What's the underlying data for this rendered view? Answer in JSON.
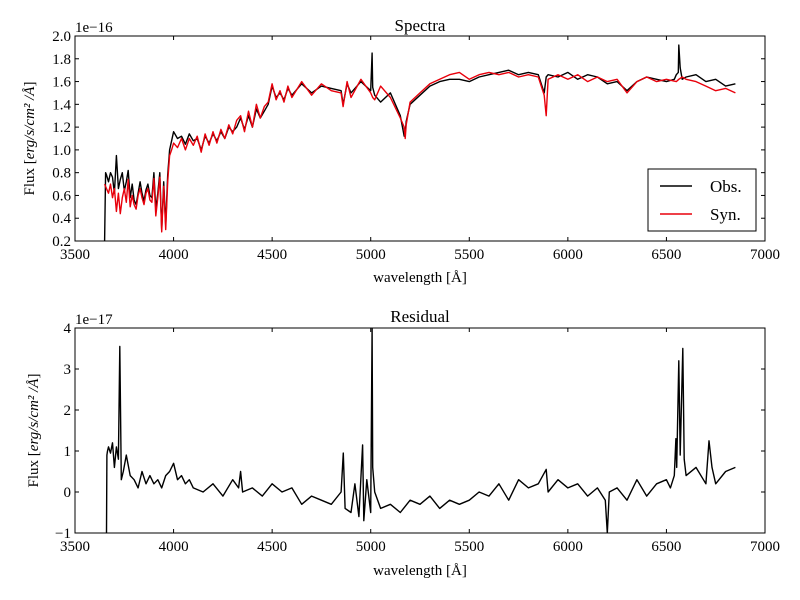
{
  "chart_data": [
    {
      "type": "line",
      "title": "Spectra",
      "xlabel": "wavelength [Å]",
      "ylabel_text": "Flux [",
      "ylabel_unit": "erg/s/cm² /Å",
      "ylabel_close": "]",
      "offset_text": "1e−16",
      "xlim": [
        3500,
        7000
      ],
      "ylim": [
        0.2,
        2.0
      ],
      "xticks": [
        3500,
        4000,
        4500,
        5000,
        5500,
        6000,
        6500,
        7000
      ],
      "yticks": [
        0.2,
        0.4,
        0.6,
        0.8,
        1.0,
        1.2,
        1.4,
        1.6,
        1.8,
        2.0
      ],
      "ytick_labels": [
        "0.2",
        "0.4",
        "0.6",
        "0.8",
        "1.0",
        "1.2",
        "1.4",
        "1.6",
        "1.8",
        "2.0"
      ],
      "legend": {
        "position": "lower-right",
        "entries": [
          "Obs.",
          "Syn."
        ]
      },
      "series": [
        {
          "name": "Obs.",
          "color": "#000000",
          "x": [
            3650,
            3655,
            3660,
            3670,
            3680,
            3690,
            3700,
            3710,
            3720,
            3730,
            3740,
            3750,
            3760,
            3770,
            3780,
            3790,
            3800,
            3810,
            3820,
            3830,
            3840,
            3850,
            3860,
            3870,
            3880,
            3890,
            3900,
            3910,
            3920,
            3930,
            3940,
            3950,
            3960,
            3970,
            3980,
            3990,
            4000,
            4020,
            4040,
            4060,
            4080,
            4100,
            4120,
            4140,
            4160,
            4180,
            4200,
            4220,
            4240,
            4260,
            4280,
            4300,
            4320,
            4340,
            4360,
            4380,
            4400,
            4420,
            4440,
            4460,
            4480,
            4500,
            4520,
            4540,
            4560,
            4580,
            4600,
            4650,
            4700,
            4750,
            4800,
            4850,
            4860,
            4880,
            4900,
            4950,
            5000,
            5007,
            5010,
            5020,
            5050,
            5100,
            5150,
            5170,
            5175,
            5180,
            5200,
            5250,
            5300,
            5350,
            5400,
            5450,
            5500,
            5550,
            5600,
            5650,
            5700,
            5750,
            5800,
            5850,
            5880,
            5890,
            5900,
            5950,
            6000,
            6050,
            6100,
            6150,
            6200,
            6250,
            6300,
            6350,
            6400,
            6450,
            6500,
            6540,
            6550,
            6560,
            6563,
            6570,
            6580,
            6600,
            6650,
            6700,
            6750,
            6800,
            6850
          ],
          "y": [
            0.2,
            0.8,
            0.78,
            0.72,
            0.8,
            0.76,
            0.62,
            0.95,
            0.66,
            0.74,
            0.8,
            0.64,
            0.72,
            0.82,
            0.58,
            0.7,
            0.56,
            0.52,
            0.62,
            0.72,
            0.62,
            0.55,
            0.65,
            0.7,
            0.6,
            0.58,
            0.8,
            0.48,
            0.62,
            0.8,
            0.3,
            0.72,
            0.34,
            0.78,
            1.0,
            1.08,
            1.16,
            1.1,
            1.12,
            1.05,
            1.14,
            1.08,
            1.1,
            1.0,
            1.12,
            1.06,
            1.14,
            1.08,
            1.16,
            1.1,
            1.2,
            1.16,
            1.2,
            1.28,
            1.18,
            1.3,
            1.2,
            1.36,
            1.28,
            1.34,
            1.4,
            1.56,
            1.46,
            1.5,
            1.44,
            1.54,
            1.48,
            1.58,
            1.5,
            1.56,
            1.54,
            1.52,
            1.4,
            1.58,
            1.5,
            1.6,
            1.52,
            1.85,
            1.55,
            1.48,
            1.42,
            1.5,
            1.3,
            1.12,
            1.15,
            1.25,
            1.4,
            1.48,
            1.56,
            1.6,
            1.62,
            1.62,
            1.6,
            1.64,
            1.66,
            1.68,
            1.7,
            1.66,
            1.68,
            1.66,
            1.5,
            1.64,
            1.66,
            1.64,
            1.68,
            1.62,
            1.66,
            1.64,
            1.58,
            1.6,
            1.52,
            1.6,
            1.64,
            1.62,
            1.6,
            1.62,
            1.66,
            1.68,
            1.92,
            1.72,
            1.62,
            1.64,
            1.66,
            1.6,
            1.62,
            1.56,
            1.58
          ]
        },
        {
          "name": "Syn.",
          "color": "#e8000b",
          "x": [
            3650,
            3660,
            3670,
            3680,
            3690,
            3700,
            3710,
            3720,
            3730,
            3740,
            3750,
            3760,
            3770,
            3780,
            3790,
            3800,
            3810,
            3820,
            3830,
            3840,
            3850,
            3860,
            3870,
            3880,
            3890,
            3900,
            3910,
            3920,
            3930,
            3940,
            3950,
            3960,
            3970,
            3980,
            3990,
            4000,
            4020,
            4040,
            4060,
            4080,
            4100,
            4120,
            4140,
            4160,
            4180,
            4200,
            4220,
            4240,
            4260,
            4280,
            4300,
            4320,
            4340,
            4360,
            4380,
            4400,
            4420,
            4440,
            4460,
            4480,
            4500,
            4520,
            4540,
            4560,
            4580,
            4600,
            4650,
            4700,
            4750,
            4800,
            4850,
            4860,
            4880,
            4900,
            4950,
            5000,
            5010,
            5020,
            5050,
            5100,
            5150,
            5170,
            5175,
            5180,
            5200,
            5250,
            5300,
            5350,
            5400,
            5450,
            5500,
            5550,
            5600,
            5650,
            5700,
            5750,
            5800,
            5850,
            5880,
            5890,
            5900,
            5950,
            6000,
            6050,
            6100,
            6150,
            6200,
            6250,
            6300,
            6350,
            6400,
            6450,
            6500,
            6550,
            6563,
            6580,
            6600,
            6650,
            6700,
            6750,
            6800,
            6850
          ],
          "y": [
            0.7,
            0.66,
            0.62,
            0.7,
            0.58,
            0.66,
            0.46,
            0.62,
            0.44,
            0.58,
            0.66,
            0.54,
            0.74,
            0.5,
            0.6,
            0.52,
            0.48,
            0.6,
            0.66,
            0.58,
            0.52,
            0.62,
            0.66,
            0.56,
            0.54,
            0.75,
            0.42,
            0.58,
            0.76,
            0.28,
            0.68,
            0.3,
            0.72,
            0.95,
            1.0,
            1.06,
            1.02,
            1.1,
            1.0,
            1.1,
            1.04,
            1.12,
            0.98,
            1.14,
            1.04,
            1.16,
            1.06,
            1.18,
            1.1,
            1.22,
            1.14,
            1.26,
            1.3,
            1.16,
            1.34,
            1.2,
            1.4,
            1.28,
            1.38,
            1.42,
            1.58,
            1.44,
            1.52,
            1.42,
            1.56,
            1.46,
            1.6,
            1.48,
            1.58,
            1.52,
            1.5,
            1.38,
            1.6,
            1.46,
            1.62,
            1.5,
            1.46,
            1.44,
            1.56,
            1.46,
            1.28,
            1.2,
            1.1,
            1.22,
            1.42,
            1.5,
            1.58,
            1.62,
            1.66,
            1.68,
            1.62,
            1.66,
            1.68,
            1.66,
            1.68,
            1.64,
            1.66,
            1.64,
            1.48,
            1.3,
            1.62,
            1.66,
            1.62,
            1.66,
            1.6,
            1.64,
            1.6,
            1.62,
            1.5,
            1.6,
            1.64,
            1.6,
            1.62,
            1.6,
            1.62,
            1.64,
            1.62,
            1.6,
            1.56,
            1.52,
            1.54,
            1.5
          ]
        }
      ]
    },
    {
      "type": "line",
      "title": "Residual",
      "xlabel": "wavelength [Å]",
      "ylabel_text": "Flux [",
      "ylabel_unit": "erg/s/cm² /Å",
      "ylabel_close": "]",
      "offset_text": "1e−17",
      "xlim": [
        3500,
        7000
      ],
      "ylim": [
        -1,
        4
      ],
      "xticks": [
        3500,
        4000,
        4500,
        5000,
        5500,
        6000,
        6500,
        7000
      ],
      "yticks": [
        -1,
        0,
        1,
        2,
        3,
        4
      ],
      "ytick_labels": [
        "−1",
        "0",
        "1",
        "2",
        "3",
        "4"
      ],
      "series": [
        {
          "name": "Residual",
          "color": "#000000",
          "x": [
            3660,
            3662,
            3665,
            3670,
            3680,
            3690,
            3700,
            3710,
            3720,
            3727,
            3735,
            3745,
            3760,
            3780,
            3800,
            3820,
            3840,
            3860,
            3880,
            3900,
            3920,
            3940,
            3960,
            3980,
            4000,
            4020,
            4040,
            4060,
            4080,
            4100,
            4150,
            4200,
            4250,
            4300,
            4330,
            4340,
            4350,
            4400,
            4450,
            4500,
            4550,
            4600,
            4650,
            4700,
            4750,
            4800,
            4850,
            4861,
            4870,
            4900,
            4920,
            4940,
            4959,
            4965,
            4980,
            5000,
            5007,
            5010,
            5020,
            5050,
            5100,
            5150,
            5200,
            5250,
            5300,
            5350,
            5400,
            5450,
            5500,
            5550,
            5600,
            5650,
            5700,
            5750,
            5800,
            5850,
            5890,
            5900,
            5950,
            6000,
            6050,
            6100,
            6150,
            6190,
            6200,
            6210,
            6250,
            6300,
            6350,
            6400,
            6450,
            6500,
            6520,
            6540,
            6548,
            6552,
            6563,
            6570,
            6583,
            6590,
            6600,
            6650,
            6700,
            6716,
            6731,
            6750,
            6800,
            6850
          ],
          "y": [
            -1,
            0.9,
            1.0,
            1.1,
            0.95,
            1.2,
            0.6,
            1.1,
            0.8,
            3.55,
            0.3,
            0.5,
            0.9,
            0.4,
            0.3,
            0.1,
            0.5,
            0.2,
            0.4,
            0.2,
            0.3,
            0.1,
            0.4,
            0.5,
            0.7,
            0.3,
            0.4,
            0.2,
            0.3,
            0.1,
            0.0,
            0.2,
            -0.1,
            0.3,
            0.1,
            0.5,
            0.0,
            0.1,
            -0.1,
            0.2,
            0.0,
            0.1,
            -0.3,
            -0.1,
            -0.2,
            -0.3,
            0.0,
            0.95,
            -0.4,
            -0.5,
            0.2,
            -0.6,
            1.15,
            -0.7,
            0.3,
            -0.5,
            4.0,
            0.6,
            0.0,
            -0.4,
            -0.3,
            -0.5,
            -0.2,
            -0.3,
            -0.1,
            -0.4,
            -0.2,
            -0.3,
            -0.2,
            0.0,
            -0.1,
            0.2,
            -0.2,
            0.3,
            0.1,
            0.2,
            0.55,
            0.0,
            0.3,
            0.1,
            0.2,
            -0.1,
            0.1,
            -0.2,
            -1.0,
            0.0,
            0.1,
            -0.2,
            0.3,
            -0.1,
            0.2,
            0.3,
            0.1,
            0.4,
            1.3,
            0.6,
            3.2,
            0.9,
            3.5,
            0.8,
            0.4,
            0.6,
            0.2,
            1.25,
            0.6,
            0.2,
            0.5,
            0.6
          ]
        }
      ]
    }
  ]
}
